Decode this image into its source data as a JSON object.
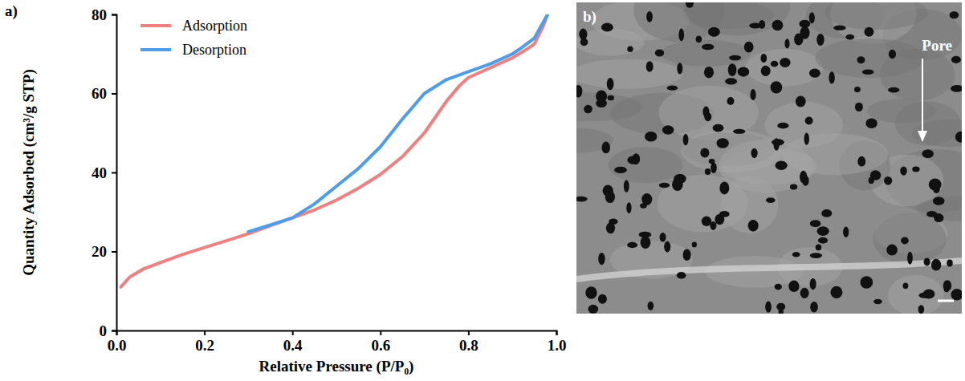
{
  "chart_data": {
    "type": "line",
    "panel": "a)",
    "x_label": "Relative Pressure (P/P₀)",
    "y_label": "Quantity Adsorbed (cm³/g STP)",
    "xlim": [
      0,
      1
    ],
    "xticks": [
      {
        "value": 0,
        "label": "0.0"
      },
      {
        "value": 0.2,
        "label": "0.2"
      },
      {
        "value": 0.4,
        "label": "0.4"
      },
      {
        "value": 0.6,
        "label": "0.6"
      },
      {
        "value": 0.8,
        "label": "0.8"
      },
      {
        "value": 1,
        "label": "1.0"
      }
    ],
    "ylim": [
      0,
      80
    ],
    "yticks": [
      0,
      20,
      40,
      60,
      80
    ],
    "grid": false,
    "legend": "upper left",
    "series": [
      {
        "name": "Adsorption",
        "color": "#ef8080",
        "line_style": "solid",
        "x": [
          0.01,
          0.03,
          0.06,
          0.1,
          0.15,
          0.2,
          0.25,
          0.3,
          0.35,
          0.4,
          0.45,
          0.5,
          0.55,
          0.6,
          0.65,
          0.7,
          0.75,
          0.78,
          0.8,
          0.85,
          0.9,
          0.93,
          0.95,
          0.97,
          0.98
        ],
        "values": [
          11,
          13.5,
          15.5,
          17.2,
          19.2,
          21,
          22.7,
          24.5,
          26.5,
          28.5,
          30.5,
          33,
          36,
          39.5,
          44,
          50,
          58,
          62,
          64,
          66.5,
          69,
          71,
          72.5,
          77,
          80
        ]
      },
      {
        "name": "Desorption",
        "color": "#4f9de8",
        "line_style": "solid",
        "x": [
          0.98,
          0.95,
          0.92,
          0.9,
          0.85,
          0.8,
          0.75,
          0.7,
          0.65,
          0.6,
          0.55,
          0.5,
          0.45,
          0.4,
          0.35,
          0.3
        ],
        "values": [
          80,
          74,
          71.5,
          70,
          67.5,
          65.5,
          63.5,
          60,
          53.5,
          46.5,
          41,
          36.5,
          32,
          28.5,
          26.7,
          25
        ]
      }
    ]
  },
  "image": {
    "panel": "b)",
    "annotation": "Pore"
  }
}
